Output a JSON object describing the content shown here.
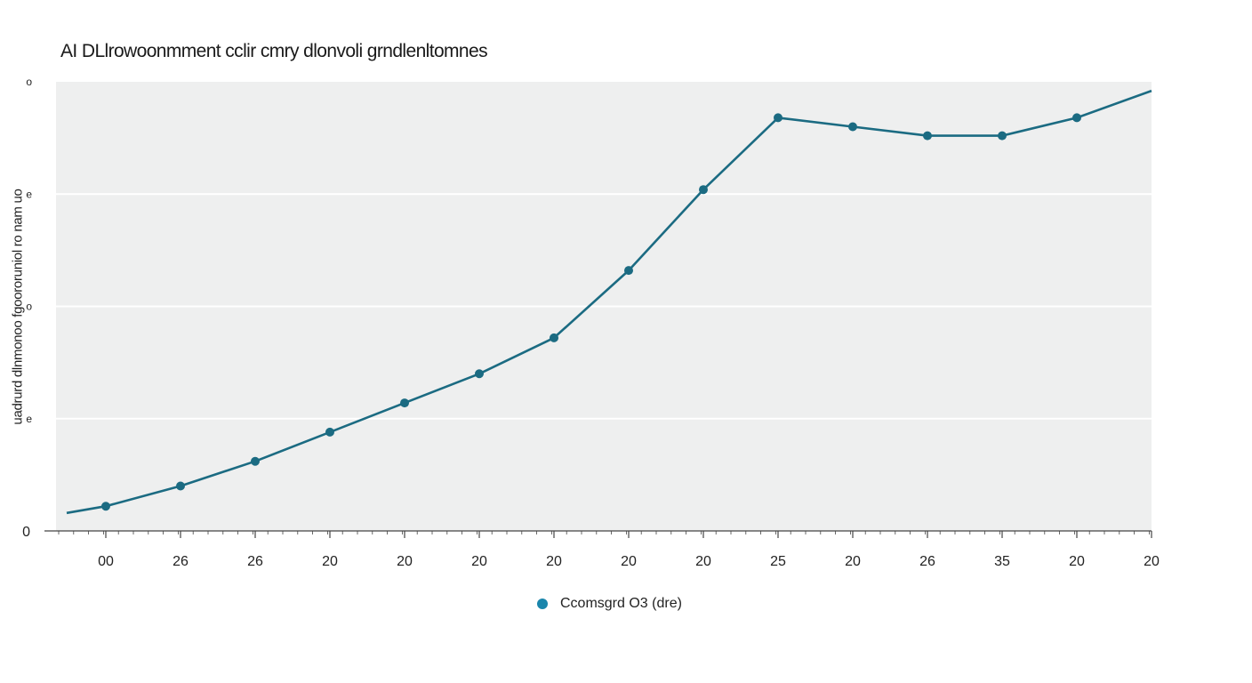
{
  "title": "AI DLlrowoonmment cclir cmry dlonvoli grndlenltomnes",
  "colors": {
    "line": "#1b6b82",
    "legend_marker": "#1a86ac",
    "plot_bg": "#eeefef",
    "grid": "#ffffff",
    "axis": "#444444"
  },
  "chart_data": {
    "type": "line",
    "title": "AI DLlrowoonmment cclir cmry dlonvoli grndlenltomnes",
    "xlabel": "",
    "ylabel": "uadrurd dlnmonoo fgoororuniol ro nam uo",
    "categories": [
      "00",
      "26",
      "26",
      "20",
      "20",
      "20",
      "20",
      "20",
      "20",
      "25",
      "20",
      "26",
      "35",
      "20",
      "20"
    ],
    "yticks": [
      "0",
      "e",
      "o",
      "e",
      "o"
    ],
    "ylim": [
      0,
      100
    ],
    "grid": true,
    "legend_position": "bottom-center",
    "series": [
      {
        "name": "Ccomsgrd O3 (dre)",
        "line_start": 4,
        "values": [
          5.5,
          10,
          15.5,
          22,
          28.5,
          35,
          43,
          58,
          76,
          92,
          90,
          88,
          88,
          92,
          98
        ]
      }
    ]
  }
}
